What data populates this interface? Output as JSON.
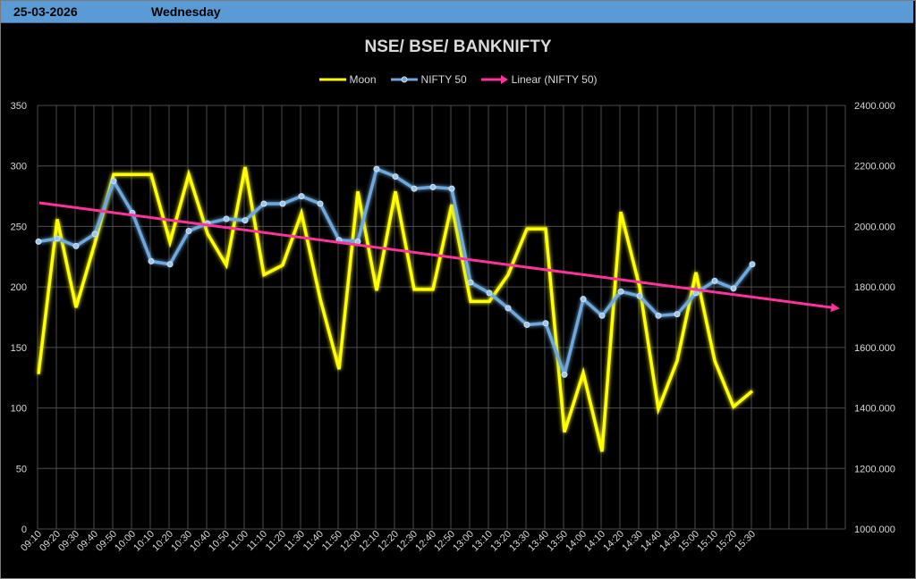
{
  "header": {
    "date": "25-03-2026",
    "day": "Wednesday"
  },
  "colors": {
    "moon": "#ffff00",
    "nifty": "#6fa8dc",
    "trend": "#ff3399",
    "grid": "#4d4d4d",
    "text": "#d9d9d9",
    "topbar": "#5b9bd5"
  },
  "chart_data": {
    "type": "line",
    "title": "NSE/ BSE/ BANKNIFTY",
    "legend": [
      "Moon",
      "NIFTY 50",
      "Linear (NIFTY 50)"
    ],
    "legend_position": "top",
    "grid": true,
    "categories": [
      "09:10",
      "09:20",
      "09:30",
      "09:40",
      "09:50",
      "10:00",
      "10:10",
      "10:20",
      "10:30",
      "10:40",
      "10:50",
      "11:00",
      "11:10",
      "11:20",
      "11:30",
      "11:40",
      "11:50",
      "12:00",
      "12:10",
      "12:20",
      "12:30",
      "12:40",
      "12:50",
      "13:00",
      "13:10",
      "13:20",
      "13:30",
      "13:40",
      "13:50",
      "14:00",
      "14:10",
      "14:20",
      "14:30",
      "14:40",
      "14:50",
      "15:00",
      "15:10",
      "15:20",
      "15:30"
    ],
    "y_left": {
      "min": 0,
      "max": 350,
      "step": 50,
      "tick_labels": [
        "0",
        "50",
        "100",
        "150",
        "200",
        "250",
        "300",
        "350"
      ]
    },
    "y_right": {
      "min": 1000,
      "max": 2400,
      "step": 200,
      "tick_labels": [
        "1000.000",
        "1200.000",
        "1400.000",
        "1600.000",
        "1800.000",
        "2000.000",
        "2200.000",
        "2400.000"
      ]
    },
    "series": [
      {
        "name": "Moon",
        "axis": "left",
        "values": [
          128,
          256,
          183,
          236,
          293,
          293,
          293,
          237,
          293,
          244,
          218,
          299,
          210,
          218,
          261,
          190,
          132,
          279,
          197,
          279,
          198,
          198,
          268,
          188,
          188,
          210,
          248,
          248,
          80,
          129,
          64,
          262,
          200,
          99,
          139,
          212,
          139,
          101,
          114
        ]
      },
      {
        "name": "NIFTY 50",
        "axis": "left_scaled_right",
        "values": [
          1950,
          1960,
          1935,
          1975,
          2150,
          2045,
          1885,
          1875,
          1985,
          2010,
          2025,
          2020,
          2075,
          2075,
          2100,
          2075,
          1955,
          1950,
          2190,
          2165,
          2125,
          2130,
          2125,
          1815,
          1780,
          1730,
          1675,
          1680,
          1510,
          1760,
          1705,
          1785,
          1770,
          1705,
          1710,
          1780,
          1820,
          1795,
          1875
        ]
      },
      {
        "name": "Linear (NIFTY 50)",
        "axis": "left_scaled_right",
        "start_value": 2078,
        "end_value": 1730
      }
    ]
  }
}
